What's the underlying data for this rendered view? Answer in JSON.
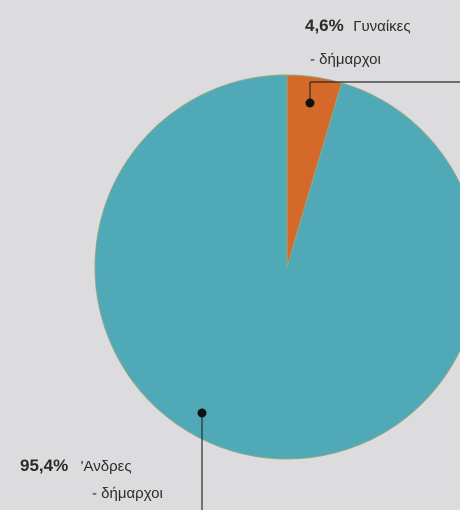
{
  "chart_data": {
    "type": "pie",
    "slices": [
      {
        "percent_label": "4,6%",
        "label_line1": "Γυναίκες",
        "label_line2": "- δήμαρχοι",
        "value": 4.6,
        "color": "#d4692a"
      },
      {
        "percent_label": "95,4%",
        "label_line1": "'Ανδρες",
        "label_line2": "- δήμαρχοι",
        "value": 95.4,
        "color": "#4fa9b6"
      }
    ]
  }
}
